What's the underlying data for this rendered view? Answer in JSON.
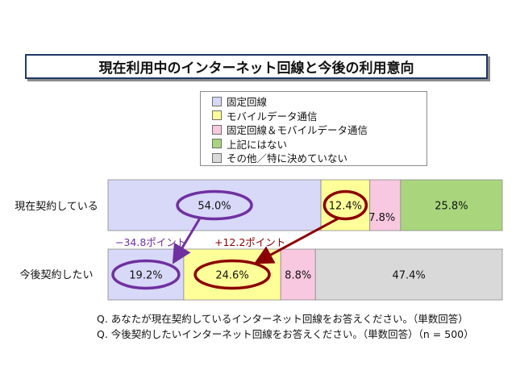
{
  "chart_data": {
    "type": "bar",
    "orientation": "horizontal",
    "stacked": true,
    "normalized": true,
    "title": "現在利用中のインターネット回線と今後の利用意向",
    "categories": [
      "現在契約している",
      "今後契約したい"
    ],
    "series": [
      {
        "name": "固定回線",
        "values": [
          54.0,
          19.2
        ],
        "labels": [
          "54.0%",
          "19.2%"
        ],
        "color": "#d8d8f8"
      },
      {
        "name": "モバイルデータ通信",
        "values": [
          12.4,
          24.6
        ],
        "labels": [
          "12.4%",
          "24.6%"
        ],
        "color": "#ffff99"
      },
      {
        "name": "固定回線＆モバイルデータ通信",
        "values": [
          7.8,
          8.8
        ],
        "labels": [
          "7.8%",
          "8.8%"
        ],
        "color": "#f8c8e0"
      },
      {
        "name": "上記にはない",
        "values": [
          25.8,
          0
        ],
        "labels": [
          "25.8%",
          ""
        ],
        "color": "#a9d67c"
      },
      {
        "name": "その他／特に決めていない",
        "values": [
          0,
          47.4
        ],
        "labels": [
          "",
          "47.4%"
        ],
        "color": "#d9d9d9"
      }
    ],
    "highlighted": [
      {
        "category": 0,
        "series": 0
      },
      {
        "category": 0,
        "series": 1
      },
      {
        "category": 1,
        "series": 0
      },
      {
        "category": 1,
        "series": 1
      }
    ],
    "annotations": [
      {
        "text": "−34.8ポイント",
        "series": 0,
        "color": "#7030a0"
      },
      {
        "text": "+12.2ポイント",
        "series": 1,
        "color": "#8b0000"
      }
    ],
    "legend_position": "top-right",
    "grid": false
  },
  "footnotes": [
    "Q. あなたが現在契約しているインターネット回線をお答えください。（単数回答）",
    "Q. 今後契約したいインターネット回線をお答えください。（単数回答）（n = 500）"
  ]
}
